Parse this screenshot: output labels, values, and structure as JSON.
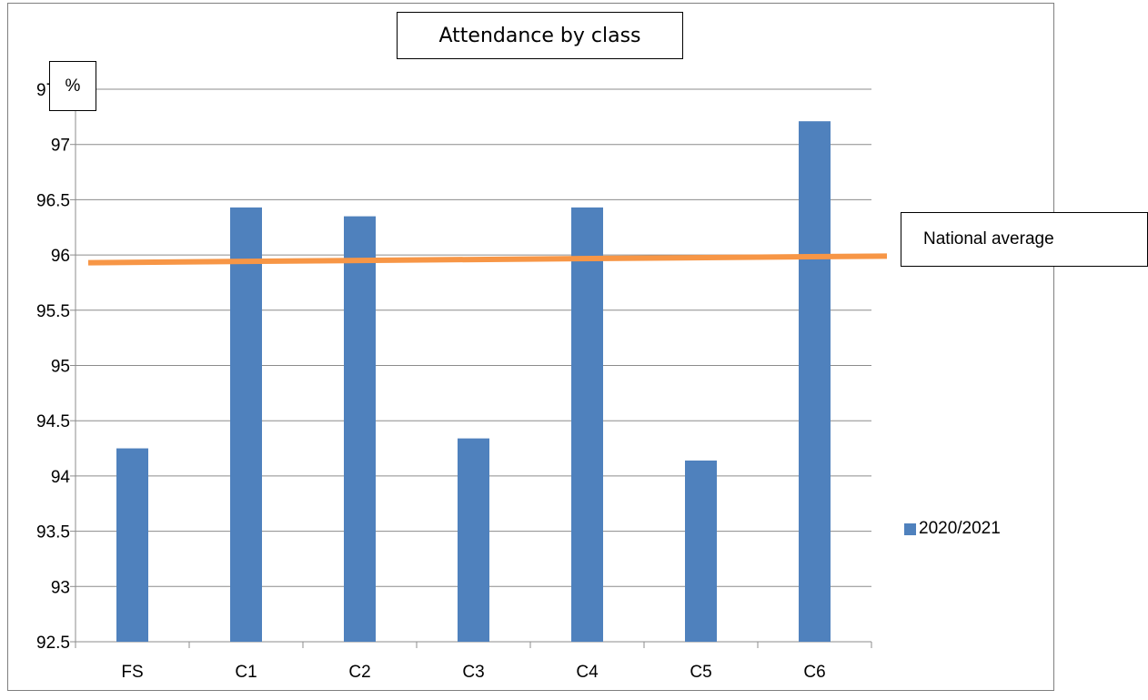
{
  "chart_data": {
    "type": "bar",
    "title": "Attendance by class",
    "ylabel": "%",
    "xlabel": "",
    "categories": [
      "FS",
      "C1",
      "C2",
      "C3",
      "C4",
      "C5",
      "C6"
    ],
    "series": [
      {
        "name": "2020/2021",
        "values": [
          94.25,
          96.43,
          96.35,
          94.34,
          96.43,
          94.14,
          97.21
        ],
        "color": "#4f81bd"
      }
    ],
    "ylim": [
      92.5,
      97.5
    ],
    "yticks": [
      "92.5",
      "93",
      "93.5",
      "94",
      "94.5",
      "95",
      "95.5",
      "96",
      "96.5",
      "97",
      "97.5"
    ],
    "grid": true,
    "legend_position": "right",
    "reference_line": {
      "label": "National average",
      "value_start": 95.93,
      "value_end": 95.99,
      "color": "#f79646"
    }
  }
}
